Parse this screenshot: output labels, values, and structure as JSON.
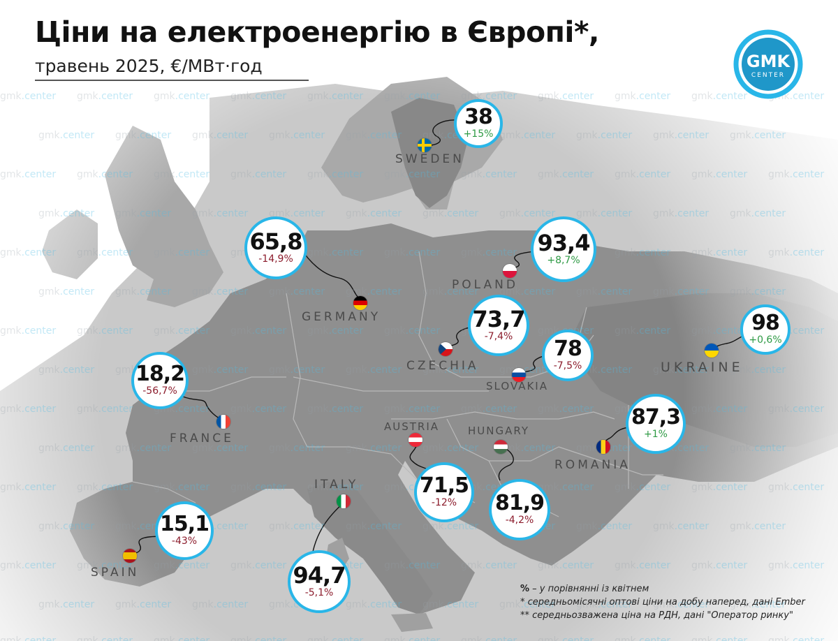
{
  "title": "Ціни на електроенергію в Європі*,",
  "subtitle": "травень 2025, €/МВт·год",
  "logo": {
    "line1": "GMK",
    "line2": "CENTER"
  },
  "watermark": {
    "part1": "gmk",
    "part2": ".center"
  },
  "countries": [
    {
      "id": "sweden",
      "name": "SWEDEN",
      "price": "38",
      "change": "+15%",
      "trend": "up"
    },
    {
      "id": "germany",
      "name": "GERMANY",
      "price": "65,8",
      "change": "-14,9%",
      "trend": "down"
    },
    {
      "id": "poland",
      "name": "POLAND",
      "price": "93,4",
      "change": "+8,7%",
      "trend": "up"
    },
    {
      "id": "czechia",
      "name": "CZECHIA",
      "price": "73,7",
      "change": "-7,4%",
      "trend": "down"
    },
    {
      "id": "slovakia",
      "name": "SLOVAKIA",
      "price": "78",
      "change": "-7,5%",
      "trend": "down"
    },
    {
      "id": "ukraine",
      "name": "UKRAINE",
      "price": "98",
      "change": "+0,6%",
      "trend": "up"
    },
    {
      "id": "france",
      "name": "FRANCE",
      "price": "18,2",
      "change": "-56,7%",
      "trend": "down"
    },
    {
      "id": "romania",
      "name": "ROMANIA",
      "price": "87,3",
      "change": "+1%",
      "trend": "up"
    },
    {
      "id": "austria",
      "name": "AUSTRIA",
      "price": "71,5",
      "change": "-12%",
      "trend": "down"
    },
    {
      "id": "hungary",
      "name": "HUNGARY",
      "price": "81,9",
      "change": "-4,2%",
      "trend": "down"
    },
    {
      "id": "italy",
      "name": "ITALY",
      "price": "94,7",
      "change": "-5,1%",
      "trend": "down"
    },
    {
      "id": "spain",
      "name": "SPAIN",
      "price": "15,1",
      "change": "-43%",
      "trend": "down"
    }
  ],
  "notes": {
    "pct_symbol": "%",
    "pct": " – у порівнянні із квітнем",
    "n1": "* середньомісячні оптові ціни на добу наперед, дані Ember",
    "n2": "** середньозважена ціна на РДН, дані \"Оператор ринку\""
  },
  "colors": {
    "land": "#8f8f8f",
    "land_dark": "#7a7a7a",
    "highlight": "#6d6d6d",
    "sea": "#ffffff",
    "accent": "#29b6e8",
    "negative": "#8c1c2c",
    "positive": "#2e9a44"
  }
}
